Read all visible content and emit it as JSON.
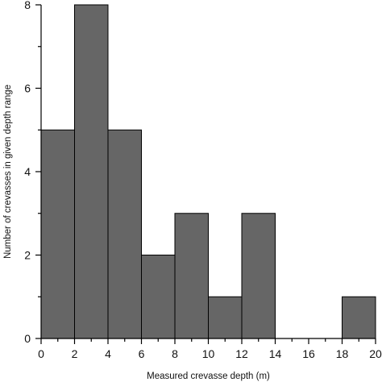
{
  "chart_data": {
    "type": "bar",
    "subtype": "histogram",
    "bins": [
      {
        "x0": 0,
        "x1": 2,
        "count": 5
      },
      {
        "x0": 2,
        "x1": 4,
        "count": 8
      },
      {
        "x0": 4,
        "x1": 6,
        "count": 5
      },
      {
        "x0": 6,
        "x1": 8,
        "count": 2
      },
      {
        "x0": 8,
        "x1": 10,
        "count": 3
      },
      {
        "x0": 10,
        "x1": 12,
        "count": 1
      },
      {
        "x0": 12,
        "x1": 14,
        "count": 3
      },
      {
        "x0": 14,
        "x1": 16,
        "count": 0
      },
      {
        "x0": 16,
        "x1": 18,
        "count": 0
      },
      {
        "x0": 18,
        "x1": 20,
        "count": 1
      }
    ],
    "xlabel": "Measured crevasse depth (m)",
    "ylabel": "Number of crevasses in given depth range",
    "xlim": [
      0,
      20
    ],
    "ylim": [
      0,
      8
    ],
    "xticks": [
      "0",
      "2",
      "4",
      "6",
      "8",
      "10",
      "12",
      "14",
      "16",
      "18",
      "20"
    ],
    "yticks": [
      "0",
      "2",
      "4",
      "6",
      "8"
    ],
    "grid": false,
    "legend": "none",
    "colors": {
      "bar_fill": "#666666",
      "bar_stroke": "#000000",
      "axis": "#000000"
    }
  }
}
